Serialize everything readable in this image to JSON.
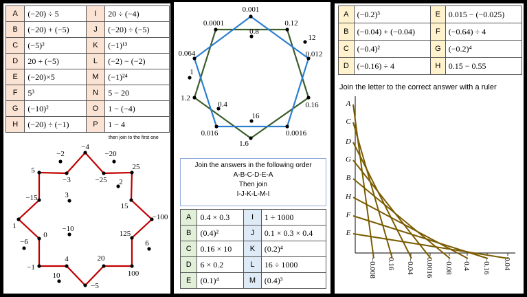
{
  "left": {
    "table": [
      {
        "l1": "A",
        "e1": "(−20) ÷ 5",
        "l2": "I",
        "e2": "20 ÷ (−4)"
      },
      {
        "l1": "B",
        "e1": "(−20) + (−5)",
        "l2": "J",
        "e2": "(−20) ÷ (−5)"
      },
      {
        "l1": "C",
        "e1": "(−5)²",
        "l2": "K",
        "e2": "(−1)¹³"
      },
      {
        "l1": "D",
        "e1": "20 + (−5)",
        "l2": "L",
        "e2": "(−2) − (−2)"
      },
      {
        "l1": "E",
        "e1": "(−20)×5",
        "l2": "M",
        "e2": "(−1)²⁴"
      },
      {
        "l1": "F",
        "e1": "5³",
        "l2": "N",
        "e2": "5 − 20"
      },
      {
        "l1": "G",
        "e1": "(−10)²",
        "l2": "O",
        "e2": "1 − (−4)"
      },
      {
        "l1": "H",
        "e1": "(−20) ÷ (−1)",
        "l2": "P",
        "e2": "1 − 4"
      }
    ],
    "note": "then join to the first one",
    "star_labels": [
      "−4",
      "−25",
      "25",
      "15",
      "−100",
      "125",
      "100",
      "20",
      "−5",
      "4",
      "−1",
      "0",
      "1",
      "−15",
      "5",
      "−3"
    ],
    "stray_labels": [
      "−2",
      "−20",
      "2",
      "3",
      "−10",
      "−6",
      "6",
      "10"
    ],
    "line_color": "#c00000"
  },
  "middle": {
    "blue_labels": [
      "0.001",
      "0.012",
      "0.0016",
      "0.016",
      "0.064"
    ],
    "green_labels": [
      "0.0001",
      "0.12",
      "0.16",
      "1.6",
      "1.2"
    ],
    "stray_labels": [
      "0.8",
      "12",
      "1",
      "0.4",
      "16"
    ],
    "blue_color": "#2a7fd0",
    "green_color": "#3b5e2b",
    "instructions": [
      "Join the answers in the following order",
      "A-B-C-D-E-A",
      "Then join",
      "I-J-K-L-M-I"
    ],
    "table": [
      {
        "l1": "A",
        "e1": "0.4 × 0.3",
        "l2": "I",
        "e2": "1 ÷ 1000"
      },
      {
        "l1": "B",
        "e1": "(0.4)²",
        "l2": "J",
        "e2": "0.1 × 0.3 × 0.4"
      },
      {
        "l1": "C",
        "e1": "0.16 × 10",
        "l2": "K",
        "e2": "(0.2)⁴"
      },
      {
        "l1": "D",
        "e1": "6 × 0.2",
        "l2": "L",
        "e2": "16 ÷ 1000"
      },
      {
        "l1": "E",
        "e1": "(0.1)⁴",
        "l2": "M",
        "e2": "(0.4)³"
      }
    ]
  },
  "right": {
    "table": [
      {
        "l1": "A",
        "e1": "(−0.2)³",
        "l2": "E",
        "e2": "0.015 − (−0.025)"
      },
      {
        "l1": "B",
        "e1": "(−0.04) + (−0.04)",
        "l2": "F",
        "e2": "(−0.64) ÷ 4"
      },
      {
        "l1": "C",
        "e1": "(−0.4)²",
        "l2": "G",
        "e2": "(−0.2)⁴"
      },
      {
        "l1": "D",
        "e1": "(−0.16) ÷ 4",
        "l2": "H",
        "e2": "0.15 − 0.55"
      }
    ],
    "caption": "Join the letter to the correct answer with a ruler",
    "letters": [
      "A",
      "C",
      "D",
      "G",
      "B",
      "H",
      "F",
      "E"
    ],
    "answers": [
      "−0.008",
      "0.16",
      "−0.04",
      "0.0016",
      "−0.08",
      "−0.4",
      "−0.16",
      "0.04"
    ],
    "connections": {
      "A": "−0.008",
      "C": "0.16",
      "D": "−0.04",
      "G": "0.0016",
      "B": "−0.08",
      "H": "−0.4",
      "F": "−0.16",
      "E": "0.04"
    },
    "line_color": "#7a5c00"
  }
}
